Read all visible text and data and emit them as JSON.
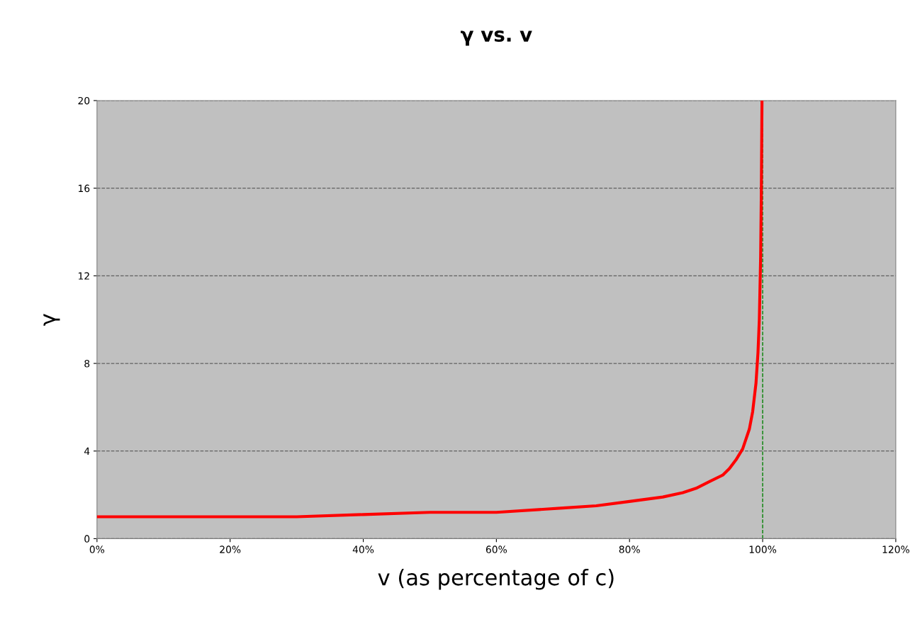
{
  "chart_data": {
    "type": "line",
    "title": "γ vs. v",
    "xlabel": "v (as percentage of c)",
    "ylabel": "γ",
    "x": [
      0,
      10,
      20,
      30,
      40,
      50,
      60,
      70,
      75,
      80,
      85,
      88,
      90,
      92,
      94,
      95,
      96,
      97,
      98,
      98.5,
      99,
      99.3,
      99.5,
      99.7,
      99.8,
      99.9
    ],
    "series": [
      {
        "color": "#ff0000",
        "values": [
          1.0,
          1.0,
          1.0,
          1.0,
          1.1,
          1.2,
          1.2,
          1.4,
          1.5,
          1.7,
          1.9,
          2.1,
          2.3,
          2.6,
          2.9,
          3.2,
          3.6,
          4.1,
          5.0,
          5.8,
          7.1,
          8.5,
          10.0,
          12.9,
          15.8,
          20.0
        ]
      }
    ],
    "xlim": [
      0,
      120
    ],
    "ylim": [
      0,
      20
    ],
    "xticks": [
      {
        "value": 0,
        "label": "0%"
      },
      {
        "value": 20,
        "label": "20%"
      },
      {
        "value": 40,
        "label": "40%"
      },
      {
        "value": 60,
        "label": "60%"
      },
      {
        "value": 80,
        "label": "80%"
      },
      {
        "value": 100,
        "label": "100%"
      },
      {
        "value": 120,
        "label": "120%"
      }
    ],
    "yticks": [
      0,
      4,
      8,
      12,
      16,
      20
    ],
    "grid": "y",
    "legend": false,
    "marker": "none",
    "line_style": "solid",
    "ref_lines": [
      {
        "axis": "x",
        "value": 100,
        "color": "#008000",
        "line_style": "dashed"
      }
    ]
  }
}
